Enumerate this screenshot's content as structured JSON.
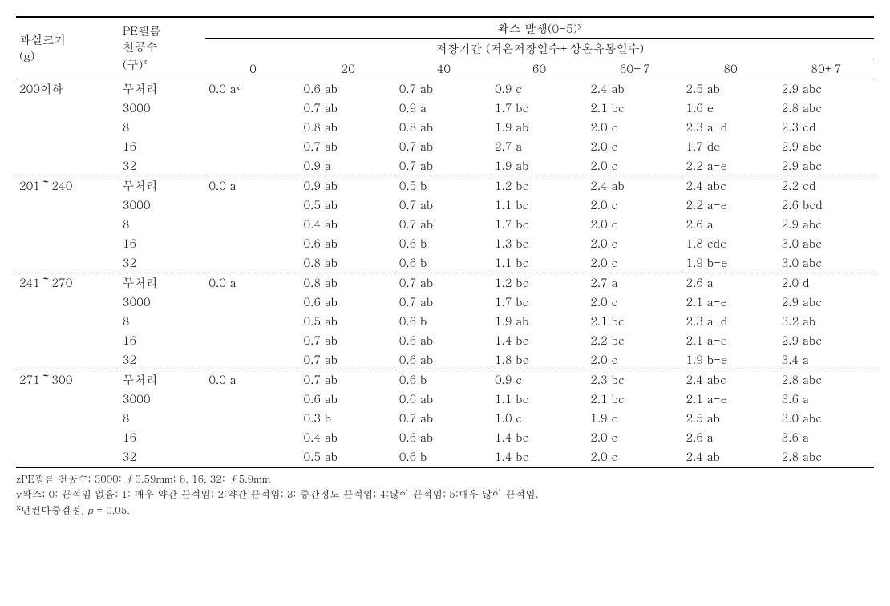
{
  "header": {
    "col1": "과실크기\n(g)",
    "col2": "PE필름\n천공수\n(구)z",
    "top_span": "왁스 발생(0-5)y",
    "sub_span": "저장기간 (저온저장일수+상온유통일수)",
    "days": [
      "0",
      "20",
      "40",
      "60",
      "60+7",
      "80",
      "80+7"
    ]
  },
  "groups": [
    {
      "size": "200이하",
      "rows": [
        {
          "t": "무처리",
          "v": [
            "0.0 aˣ",
            "0.6 ab",
            "0.7 ab",
            "0.9 c",
            "2.4 ab",
            "2.5 ab",
            "2.9 abc"
          ]
        },
        {
          "t": "3000",
          "v": [
            "",
            "0.7 ab",
            "0.9 a",
            "1.7 bc",
            "2.1 bc",
            "1.6 e",
            "2.8 abc"
          ]
        },
        {
          "t": "8",
          "v": [
            "",
            "0.8 ab",
            "0.8 ab",
            "1.9 ab",
            "2.0 c",
            "2.3 a-d",
            "2.3 cd"
          ]
        },
        {
          "t": "16",
          "v": [
            "",
            "0.7 ab",
            "0.7 ab",
            "2.7 a",
            "2.0 c",
            "1.7 de",
            "2.9 abc"
          ]
        },
        {
          "t": "32",
          "v": [
            "",
            "0.9 a",
            "0.7 ab",
            "1.9 ab",
            "2.0 c",
            "2.2 a-e",
            "2.9 abc"
          ]
        }
      ]
    },
    {
      "size": "201～240",
      "rows": [
        {
          "t": "무처리",
          "v": [
            "0.0 a",
            "0.9 ab",
            "0.5 b",
            "1.2 bc",
            "2.4 ab",
            "2.4 abc",
            "2.2 cd"
          ]
        },
        {
          "t": "3000",
          "v": [
            "",
            "0.5 ab",
            "0.7 ab",
            "1.1 bc",
            "2.0 c",
            "2.2 a-e",
            "2.6 bcd"
          ]
        },
        {
          "t": "8",
          "v": [
            "",
            "0.4 ab",
            "0.7 ab",
            "1.7 bc",
            "2.0 c",
            "2.6 a",
            "2.9 abc"
          ]
        },
        {
          "t": "16",
          "v": [
            "",
            "0.6 ab",
            "0.6 b",
            "1.3 bc",
            "2.0 c",
            "1.8 cde",
            "3.0 abc"
          ]
        },
        {
          "t": "32",
          "v": [
            "",
            "0.8 ab",
            "0.6 b",
            "1.1 bc",
            "2.0 c",
            "1.9 b-e",
            "3.0 abc"
          ]
        }
      ]
    },
    {
      "size": "241～270",
      "rows": [
        {
          "t": "무처리",
          "v": [
            "0.0 a",
            "0.8 ab",
            "0.7 ab",
            "1.2 bc",
            "2.7 a",
            "2.6 a",
            "2.0 d"
          ]
        },
        {
          "t": "3000",
          "v": [
            "",
            "0.6 ab",
            "0.7 ab",
            "1.7 bc",
            "2.0 c",
            "2.1 a-e",
            "2.9 abc"
          ]
        },
        {
          "t": "8",
          "v": [
            "",
            "0.5 ab",
            "0.6 b",
            "1.9 ab",
            "2.1 bc",
            "2.3 a-d",
            "3.2 ab"
          ]
        },
        {
          "t": "16",
          "v": [
            "",
            "0.7 ab",
            "0.6 ab",
            "1.4 bc",
            "2.2 bc",
            "2.1 a-e",
            "2.9 abc"
          ]
        },
        {
          "t": "32",
          "v": [
            "",
            "0.7 ab",
            "0.6 ab",
            "1.8 bc",
            "2.0 c",
            "1.9 b-e",
            "3.4 a"
          ]
        }
      ]
    },
    {
      "size": "271～300",
      "rows": [
        {
          "t": "무처리",
          "v": [
            "0.0 a",
            "0.7 ab",
            "0.6 b",
            "0.9 c",
            "2.3 bc",
            "2.4 abc",
            "2.8 abc"
          ]
        },
        {
          "t": "3000",
          "v": [
            "",
            "0.6 ab",
            "0.6 ab",
            "1.1 bc",
            "2.1 bc",
            "2.1 a-e",
            "3.6 a"
          ]
        },
        {
          "t": "8",
          "v": [
            "",
            "0.3 b",
            "0.7 ab",
            "1.0 c",
            "1.9 c",
            "2.5 ab",
            "3.0 abc"
          ]
        },
        {
          "t": "16",
          "v": [
            "",
            "0.4 ab",
            "0.6 ab",
            "1.4 bc",
            "2.0 c",
            "2.6 a",
            "3.6 a"
          ]
        },
        {
          "t": "32",
          "v": [
            "",
            "0.5 ab",
            "0.6 b",
            "1.4 bc",
            "2.0 c",
            "2.4 ab",
            "2.8 abc"
          ]
        }
      ]
    }
  ],
  "footnotes": {
    "z": "zPE필름 천공수; 3000: ∮0.59mm; 8, 16, 32: ∮5.9mm",
    "y": "y왁스; 0: 끈적임 없음; 1: 매우 약간 끈적임; 2:약간 끈적임; 3: 중간정도 끈적임; 4:많이 끈적임; 5:매우 많이 끈적임.",
    "x": "x던컨다중검정, p = 0.05."
  }
}
